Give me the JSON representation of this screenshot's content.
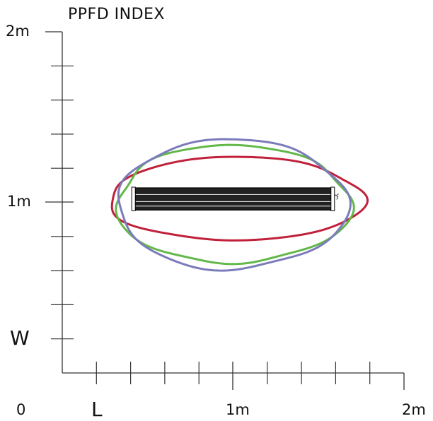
{
  "title": "PPFD INDEX",
  "axes": {
    "x_labels": {
      "start": "0",
      "mid": "1m",
      "end": "2m"
    },
    "y_labels": {
      "top": "2m",
      "mid": "1m"
    },
    "x_dim_letter": "L",
    "y_dim_letter": "W",
    "x_range_m": [
      0,
      2
    ],
    "y_range_m": [
      0,
      2
    ],
    "minor_ticks_per_axis": 10
  },
  "fixture": {
    "center_m": [
      1.0,
      1.02
    ],
    "length_m": 1.17,
    "width_m": 0.13,
    "fill": "#222222",
    "stroke": "#000000"
  },
  "contours": [
    {
      "id": "red",
      "color": "#c0203a",
      "center_m": [
        1.02,
        1.02
      ],
      "rx_m": 0.745,
      "ry_m": 0.245
    },
    {
      "id": "green",
      "color": "#63b84a",
      "center_m": [
        1.0,
        0.99
      ],
      "rx_m": 0.685,
      "ry_m": 0.345
    },
    {
      "id": "blue",
      "color": "#7b7bbb",
      "center_m": [
        0.995,
        0.99
      ],
      "rx_m": 0.67,
      "ry_m": 0.38
    }
  ],
  "colors": {
    "axis": "#333333",
    "text": "#111111"
  }
}
